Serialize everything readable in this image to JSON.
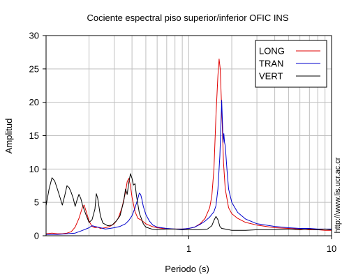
{
  "chart_data": {
    "type": "line",
    "title": "Cociente espectral piso superior/inferior  OFIC INS",
    "xlabel": "Periodo (s)",
    "ylabel": "Amplitud",
    "xscale": "log",
    "xlim": [
      0.1,
      10
    ],
    "ylim": [
      0,
      30
    ],
    "x_tick_labels": [
      {
        "value": 1,
        "label": "1"
      },
      {
        "value": 10,
        "label": "10"
      }
    ],
    "y_ticks": [
      0,
      5,
      10,
      15,
      20,
      25,
      30
    ],
    "grid": true,
    "legend_position": "top-right",
    "series": [
      {
        "name": "LONG",
        "color": "#e00000",
        "points": [
          [
            0.1,
            0.3
          ],
          [
            0.11,
            0.4
          ],
          [
            0.12,
            0.3
          ],
          [
            0.13,
            0.3
          ],
          [
            0.14,
            0.4
          ],
          [
            0.15,
            0.6
          ],
          [
            0.16,
            1.3
          ],
          [
            0.17,
            2.6
          ],
          [
            0.18,
            4.3
          ],
          [
            0.185,
            4.6
          ],
          [
            0.19,
            3.8
          ],
          [
            0.2,
            2.2
          ],
          [
            0.21,
            1.4
          ],
          [
            0.22,
            1.2
          ],
          [
            0.23,
            1.3
          ],
          [
            0.24,
            1.1
          ],
          [
            0.26,
            1.2
          ],
          [
            0.28,
            1.4
          ],
          [
            0.3,
            1.8
          ],
          [
            0.32,
            2.6
          ],
          [
            0.34,
            4.2
          ],
          [
            0.36,
            6.5
          ],
          [
            0.37,
            8.1
          ],
          [
            0.38,
            8.6
          ],
          [
            0.39,
            7.5
          ],
          [
            0.4,
            5.8
          ],
          [
            0.42,
            3.6
          ],
          [
            0.44,
            2.6
          ],
          [
            0.46,
            2.4
          ],
          [
            0.48,
            2.1
          ],
          [
            0.5,
            1.8
          ],
          [
            0.55,
            1.4
          ],
          [
            0.6,
            1.2
          ],
          [
            0.7,
            1.0
          ],
          [
            0.8,
            1.0
          ],
          [
            0.9,
            1.0
          ],
          [
            1.0,
            1.1
          ],
          [
            1.1,
            1.3
          ],
          [
            1.2,
            1.8
          ],
          [
            1.3,
            2.6
          ],
          [
            1.4,
            4.2
          ],
          [
            1.45,
            6
          ],
          [
            1.5,
            10
          ],
          [
            1.55,
            18
          ],
          [
            1.6,
            24
          ],
          [
            1.63,
            26.5
          ],
          [
            1.66,
            25
          ],
          [
            1.7,
            19
          ],
          [
            1.75,
            11
          ],
          [
            1.8,
            7
          ],
          [
            1.9,
            4.2
          ],
          [
            2.0,
            3.3
          ],
          [
            2.2,
            2.6
          ],
          [
            2.5,
            2.0
          ],
          [
            3.0,
            1.6
          ],
          [
            4.0,
            1.2
          ],
          [
            5.0,
            1.1
          ],
          [
            6.0,
            1.0
          ],
          [
            7.0,
            0.9
          ],
          [
            8.0,
            0.9
          ],
          [
            9.0,
            0.8
          ],
          [
            10.0,
            0.8
          ]
        ]
      },
      {
        "name": "TRAN",
        "color": "#0000cc",
        "points": [
          [
            0.1,
            0.2
          ],
          [
            0.12,
            0.2
          ],
          [
            0.14,
            0.3
          ],
          [
            0.16,
            0.4
          ],
          [
            0.18,
            0.8
          ],
          [
            0.2,
            1.2
          ],
          [
            0.21,
            1.5
          ],
          [
            0.22,
            1.4
          ],
          [
            0.24,
            1.2
          ],
          [
            0.26,
            1.0
          ],
          [
            0.28,
            1.1
          ],
          [
            0.3,
            1.2
          ],
          [
            0.33,
            1.4
          ],
          [
            0.36,
            1.8
          ],
          [
            0.38,
            2.3
          ],
          [
            0.4,
            3.0
          ],
          [
            0.42,
            4.2
          ],
          [
            0.44,
            5.6
          ],
          [
            0.45,
            6.4
          ],
          [
            0.46,
            6.2
          ],
          [
            0.47,
            5.4
          ],
          [
            0.48,
            4.4
          ],
          [
            0.5,
            3.2
          ],
          [
            0.53,
            2.2
          ],
          [
            0.56,
            1.6
          ],
          [
            0.6,
            1.3
          ],
          [
            0.7,
            1.1
          ],
          [
            0.8,
            1.0
          ],
          [
            0.9,
            1.0
          ],
          [
            1.0,
            1.1
          ],
          [
            1.1,
            1.3
          ],
          [
            1.2,
            1.7
          ],
          [
            1.3,
            2.2
          ],
          [
            1.4,
            2.8
          ],
          [
            1.5,
            3.6
          ],
          [
            1.55,
            4.5
          ],
          [
            1.6,
            7
          ],
          [
            1.65,
            12
          ],
          [
            1.68,
            17
          ],
          [
            1.7,
            20.3
          ],
          [
            1.72,
            17
          ],
          [
            1.74,
            14
          ],
          [
            1.76,
            15.3
          ],
          [
            1.78,
            14
          ],
          [
            1.8,
            13.5
          ],
          [
            1.85,
            10
          ],
          [
            1.9,
            7
          ],
          [
            2.0,
            5
          ],
          [
            2.2,
            3.5
          ],
          [
            2.5,
            2.5
          ],
          [
            3.0,
            1.8
          ],
          [
            4.0,
            1.4
          ],
          [
            5.0,
            1.2
          ],
          [
            6.0,
            1.1
          ],
          [
            7.0,
            1.1
          ],
          [
            8.0,
            1.0
          ],
          [
            9.0,
            1.0
          ],
          [
            10.0,
            1.0
          ]
        ]
      },
      {
        "name": "VERT",
        "color": "#000000",
        "points": [
          [
            0.1,
            4.5
          ],
          [
            0.105,
            7.0
          ],
          [
            0.11,
            8.7
          ],
          [
            0.115,
            8.2
          ],
          [
            0.12,
            7.0
          ],
          [
            0.125,
            5.8
          ],
          [
            0.13,
            4.6
          ],
          [
            0.135,
            6.0
          ],
          [
            0.14,
            7.5
          ],
          [
            0.145,
            7.2
          ],
          [
            0.15,
            6.5
          ],
          [
            0.155,
            5.6
          ],
          [
            0.16,
            4.4
          ],
          [
            0.165,
            5.4
          ],
          [
            0.17,
            6.2
          ],
          [
            0.175,
            5.6
          ],
          [
            0.18,
            4.6
          ],
          [
            0.19,
            3.2
          ],
          [
            0.2,
            2.0
          ],
          [
            0.21,
            2.4
          ],
          [
            0.22,
            4.0
          ],
          [
            0.225,
            6.3
          ],
          [
            0.23,
            5.6
          ],
          [
            0.24,
            3.0
          ],
          [
            0.25,
            1.9
          ],
          [
            0.27,
            1.5
          ],
          [
            0.29,
            1.6
          ],
          [
            0.31,
            2.2
          ],
          [
            0.33,
            3.0
          ],
          [
            0.35,
            5.2
          ],
          [
            0.36,
            7.0
          ],
          [
            0.37,
            6.2
          ],
          [
            0.38,
            8.0
          ],
          [
            0.39,
            9.3
          ],
          [
            0.4,
            8.6
          ],
          [
            0.41,
            7.6
          ],
          [
            0.42,
            7.8
          ],
          [
            0.43,
            6.0
          ],
          [
            0.45,
            3.4
          ],
          [
            0.48,
            1.8
          ],
          [
            0.5,
            1.3
          ],
          [
            0.55,
            1.0
          ],
          [
            0.6,
            0.9
          ],
          [
            0.7,
            1.0
          ],
          [
            0.8,
            1.0
          ],
          [
            0.9,
            0.9
          ],
          [
            1.0,
            0.9
          ],
          [
            1.2,
            0.9
          ],
          [
            1.35,
            1.0
          ],
          [
            1.45,
            1.5
          ],
          [
            1.5,
            2.3
          ],
          [
            1.55,
            2.9
          ],
          [
            1.6,
            2.4
          ],
          [
            1.65,
            1.4
          ],
          [
            1.7,
            1.1
          ],
          [
            1.8,
            1.0
          ],
          [
            2.0,
            0.8
          ],
          [
            2.5,
            0.8
          ],
          [
            3.0,
            0.9
          ],
          [
            4.0,
            0.9
          ],
          [
            5.0,
            1.0
          ],
          [
            6.0,
            0.9
          ],
          [
            7.0,
            1.0
          ],
          [
            8.0,
            0.9
          ],
          [
            9.0,
            1.0
          ],
          [
            10.0,
            0.9
          ]
        ]
      }
    ]
  },
  "side_text": "http://www.lis.ucr.ac.cr"
}
